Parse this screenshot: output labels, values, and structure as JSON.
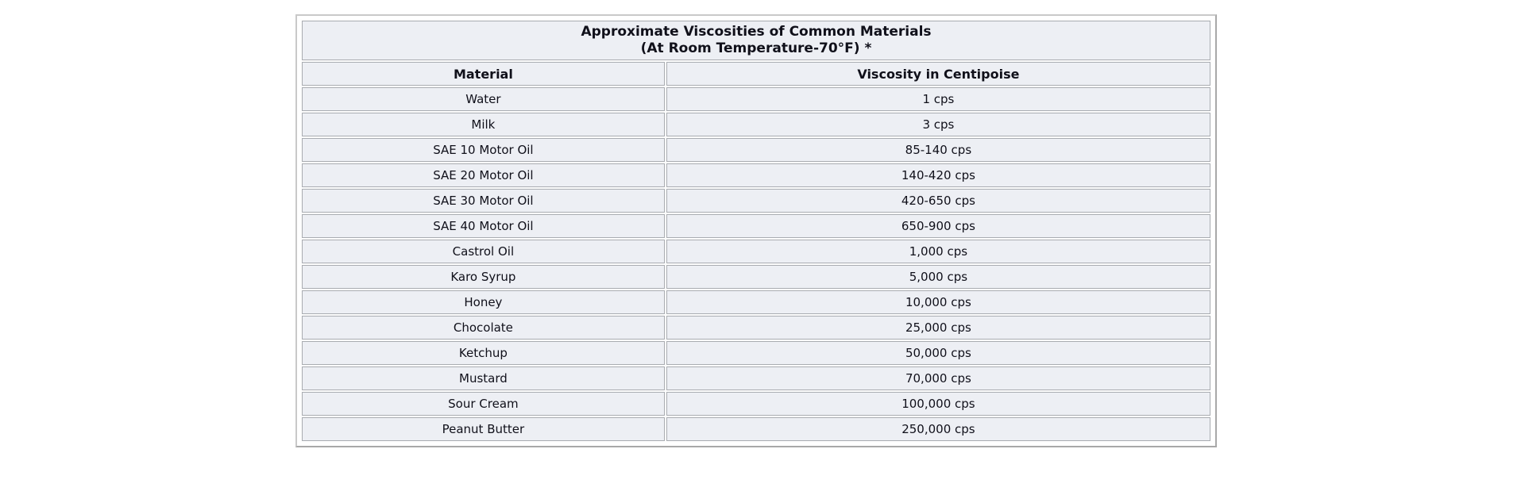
{
  "chart_data": {
    "type": "table",
    "title": "Approximate Viscosities of Common Materials",
    "subtitle": "(At Room Temperature-70°F) *",
    "columns": [
      "Material",
      "Viscosity in Centipoise"
    ],
    "rows": [
      [
        "Water",
        "1 cps"
      ],
      [
        "Milk",
        "3 cps"
      ],
      [
        "SAE 10 Motor Oil",
        "85-140 cps"
      ],
      [
        "SAE 20 Motor Oil",
        "140-420 cps"
      ],
      [
        "SAE 30 Motor Oil",
        "420-650 cps"
      ],
      [
        "SAE 40 Motor Oil",
        "650-900 cps"
      ],
      [
        "Castrol Oil",
        "1,000 cps"
      ],
      [
        "Karo Syrup",
        "5,000 cps"
      ],
      [
        "Honey",
        "10,000 cps"
      ],
      [
        "Chocolate",
        "25,000 cps"
      ],
      [
        "Ketchup",
        "50,000 cps"
      ],
      [
        "Mustard",
        "70,000 cps"
      ],
      [
        "Sour Cream",
        "100,000 cps"
      ],
      [
        "Peanut Butter",
        "250,000 cps"
      ]
    ],
    "units": "cps (centipoise)",
    "layout": {
      "alignment": "center",
      "grid": true
    },
    "colors": {
      "cell_background": "#edeff4",
      "cell_border": "#a9acb1",
      "text": "#10101a",
      "page_background": "#ffffff"
    }
  }
}
